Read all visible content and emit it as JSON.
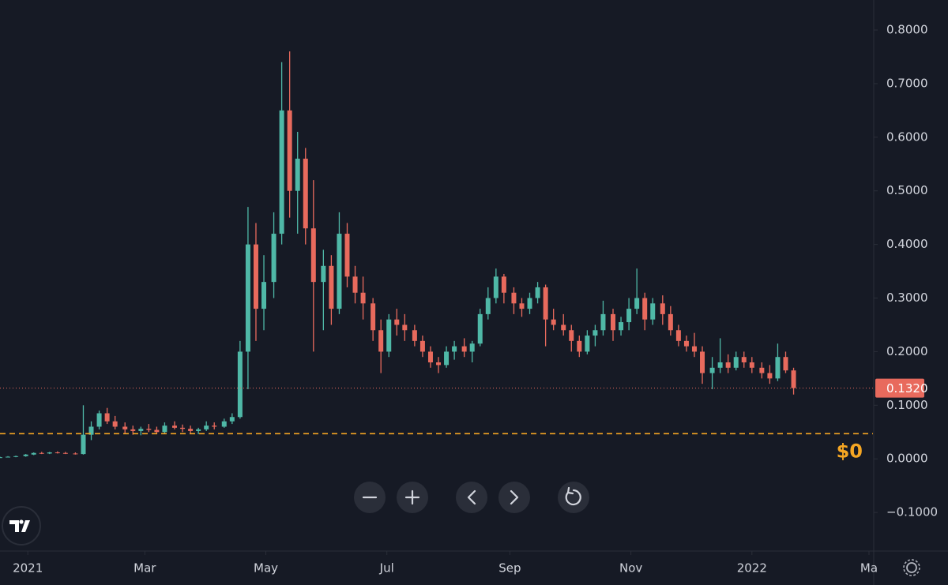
{
  "chart_data": {
    "type": "candlestick",
    "x": [
      -14,
      -10,
      -6,
      -1,
      3,
      7,
      11,
      15,
      19,
      24,
      28,
      32,
      36,
      40,
      44,
      49,
      53,
      57,
      61,
      65,
      69,
      74,
      78,
      82,
      86,
      90,
      94,
      99,
      103,
      107,
      111,
      115,
      119,
      124,
      128,
      132,
      136,
      140,
      144,
      149,
      153,
      157,
      161,
      165,
      169,
      174,
      178,
      182,
      186,
      190,
      195,
      199,
      203,
      207,
      211,
      215,
      220,
      224,
      228,
      232,
      236,
      240,
      245,
      249,
      253,
      257,
      261,
      265,
      270,
      274,
      278,
      282,
      286,
      290,
      295,
      299,
      303,
      307,
      311,
      315,
      320,
      324,
      328,
      332,
      336,
      340,
      345,
      349,
      353,
      357,
      361,
      365,
      370,
      374,
      378,
      382,
      386
    ],
    "open": [
      0.003,
      0.003,
      0.004,
      0.005,
      0.008,
      0.011,
      0.01,
      0.012,
      0.011,
      0.01,
      0.009,
      0.045,
      0.06,
      0.085,
      0.07,
      0.06,
      0.055,
      0.052,
      0.056,
      0.054,
      0.05,
      0.062,
      0.058,
      0.056,
      0.052,
      0.055,
      0.062,
      0.06,
      0.07,
      0.078,
      0.2,
      0.4,
      0.28,
      0.33,
      0.42,
      0.65,
      0.5,
      0.56,
      0.43,
      0.33,
      0.36,
      0.28,
      0.42,
      0.34,
      0.31,
      0.29,
      0.24,
      0.2,
      0.26,
      0.25,
      0.24,
      0.22,
      0.2,
      0.18,
      0.175,
      0.2,
      0.21,
      0.2,
      0.215,
      0.27,
      0.3,
      0.34,
      0.31,
      0.29,
      0.28,
      0.3,
      0.32,
      0.26,
      0.25,
      0.24,
      0.22,
      0.2,
      0.23,
      0.24,
      0.27,
      0.24,
      0.255,
      0.28,
      0.3,
      0.26,
      0.29,
      0.27,
      0.24,
      0.22,
      0.21,
      0.2,
      0.16,
      0.17,
      0.18,
      0.17,
      0.19,
      0.18,
      0.17,
      0.16,
      0.15,
      0.19,
      0.165
    ],
    "high": [
      0.004,
      0.005,
      0.006,
      0.009,
      0.012,
      0.013,
      0.013,
      0.014,
      0.013,
      0.012,
      0.1,
      0.07,
      0.09,
      0.095,
      0.08,
      0.068,
      0.062,
      0.06,
      0.065,
      0.06,
      0.068,
      0.07,
      0.064,
      0.062,
      0.058,
      0.07,
      0.068,
      0.075,
      0.085,
      0.22,
      0.47,
      0.44,
      0.38,
      0.46,
      0.74,
      0.76,
      0.61,
      0.58,
      0.52,
      0.39,
      0.38,
      0.46,
      0.44,
      0.36,
      0.34,
      0.3,
      0.26,
      0.27,
      0.28,
      0.27,
      0.25,
      0.23,
      0.21,
      0.19,
      0.21,
      0.22,
      0.225,
      0.22,
      0.28,
      0.32,
      0.355,
      0.345,
      0.32,
      0.3,
      0.31,
      0.33,
      0.325,
      0.28,
      0.27,
      0.25,
      0.23,
      0.24,
      0.25,
      0.295,
      0.28,
      0.265,
      0.3,
      0.355,
      0.31,
      0.3,
      0.305,
      0.285,
      0.25,
      0.23,
      0.235,
      0.21,
      0.19,
      0.225,
      0.195,
      0.2,
      0.2,
      0.19,
      0.18,
      0.175,
      0.215,
      0.2,
      0.17
    ],
    "low": [
      0.002,
      0.003,
      0.003,
      0.004,
      0.007,
      0.009,
      0.009,
      0.01,
      0.009,
      0.008,
      0.008,
      0.035,
      0.055,
      0.065,
      0.055,
      0.048,
      0.045,
      0.044,
      0.05,
      0.046,
      0.048,
      0.055,
      0.05,
      0.048,
      0.046,
      0.052,
      0.055,
      0.058,
      0.065,
      0.075,
      0.13,
      0.22,
      0.24,
      0.3,
      0.4,
      0.45,
      0.42,
      0.4,
      0.2,
      0.24,
      0.25,
      0.27,
      0.32,
      0.29,
      0.26,
      0.22,
      0.16,
      0.19,
      0.23,
      0.22,
      0.21,
      0.19,
      0.17,
      0.16,
      0.17,
      0.185,
      0.19,
      0.18,
      0.21,
      0.26,
      0.29,
      0.29,
      0.27,
      0.265,
      0.27,
      0.29,
      0.21,
      0.24,
      0.23,
      0.2,
      0.19,
      0.195,
      0.21,
      0.23,
      0.22,
      0.23,
      0.24,
      0.27,
      0.24,
      0.25,
      0.25,
      0.23,
      0.21,
      0.2,
      0.19,
      0.14,
      0.13,
      0.16,
      0.16,
      0.165,
      0.17,
      0.16,
      0.15,
      0.14,
      0.145,
      0.16,
      0.12
    ],
    "close": [
      0.003,
      0.004,
      0.005,
      0.008,
      0.011,
      0.01,
      0.012,
      0.011,
      0.01,
      0.009,
      0.045,
      0.06,
      0.085,
      0.07,
      0.06,
      0.055,
      0.052,
      0.056,
      0.054,
      0.05,
      0.062,
      0.058,
      0.056,
      0.052,
      0.055,
      0.062,
      0.06,
      0.07,
      0.078,
      0.2,
      0.4,
      0.28,
      0.33,
      0.42,
      0.65,
      0.5,
      0.56,
      0.43,
      0.33,
      0.36,
      0.28,
      0.42,
      0.34,
      0.31,
      0.29,
      0.24,
      0.2,
      0.26,
      0.25,
      0.24,
      0.22,
      0.2,
      0.18,
      0.175,
      0.2,
      0.21,
      0.2,
      0.215,
      0.27,
      0.3,
      0.34,
      0.31,
      0.29,
      0.28,
      0.3,
      0.32,
      0.26,
      0.25,
      0.24,
      0.22,
      0.2,
      0.23,
      0.24,
      0.27,
      0.24,
      0.255,
      0.28,
      0.3,
      0.26,
      0.29,
      0.27,
      0.24,
      0.22,
      0.21,
      0.2,
      0.16,
      0.17,
      0.18,
      0.17,
      0.19,
      0.18,
      0.17,
      0.16,
      0.15,
      0.19,
      0.165,
      0.132
    ],
    "up_color": "#4fb8a7",
    "down_color": "#e86a5d",
    "xlim": [
      -14,
      426
    ],
    "xticks": [
      {
        "value": 0,
        "label": "2021"
      },
      {
        "value": 59,
        "label": "Mar"
      },
      {
        "value": 120,
        "label": "May"
      },
      {
        "value": 181,
        "label": "Jul"
      },
      {
        "value": 243,
        "label": "Sep"
      },
      {
        "value": 304,
        "label": "Nov"
      },
      {
        "value": 365,
        "label": "2022"
      },
      {
        "value": 424,
        "label": "Ma"
      }
    ],
    "ylim": [
      -0.172,
      0.856
    ],
    "yticks": [
      {
        "value": 0.8,
        "label": "0.8000"
      },
      {
        "value": 0.7,
        "label": "0.7000"
      },
      {
        "value": 0.6,
        "label": "0.6000"
      },
      {
        "value": 0.5,
        "label": "0.5000"
      },
      {
        "value": 0.4,
        "label": "0.4000"
      },
      {
        "value": 0.3,
        "label": "0.3000"
      },
      {
        "value": 0.2,
        "label": "0.2000"
      },
      {
        "value": 0.1,
        "label": "0.1000"
      },
      {
        "value": 0,
        "label": "0.0000"
      },
      {
        "value": -0.1,
        "label": "−0.1000"
      }
    ],
    "last_price": {
      "value": 0.132,
      "label": "0.1320"
    },
    "reference_line": {
      "value": 0.047,
      "color": "#f5a623"
    },
    "annotation": "$0"
  }
}
